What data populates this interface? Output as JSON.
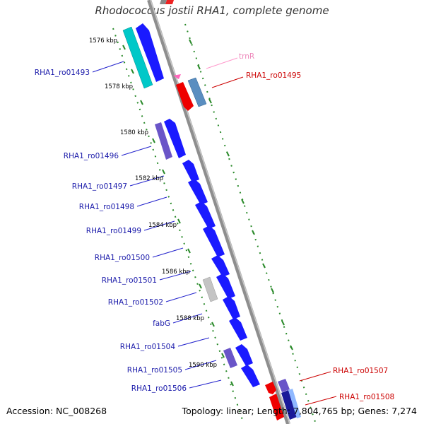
{
  "title": "Rhodococcus jostii RHA1, complete genome",
  "accession_text": "Accession: NC_008268",
  "summary_text": "Topology: linear; Length: 7,804,765 bp; Genes: 7,274",
  "colors": {
    "backbone": "#9b9b9b",
    "tick_green": "#2a8a2a",
    "forward_gene": "#1a1aff",
    "label_forward": "#1a1aaa",
    "label_reverse": "#cc0000",
    "trna_label": "#ee88bb"
  },
  "kbp_markers": [
    "1576 kbp",
    "1578 kbp",
    "1580 kbp",
    "1582 kbp",
    "1584 kbp",
    "1586 kbp",
    "1588 kbp",
    "1590 kbp"
  ],
  "forward_genes": [
    {
      "label": "RHA1_ro01493",
      "color": "#1a1aff"
    },
    {
      "label": "RHA1_ro01496",
      "color": "#1a1aff"
    },
    {
      "label": "RHA1_ro01497",
      "color": "#1a1aff"
    },
    {
      "label": "RHA1_ro01498",
      "color": "#1a1aff"
    },
    {
      "label": "RHA1_ro01499",
      "color": "#1a1aff"
    },
    {
      "label": "RHA1_ro01500",
      "color": "#1a1aff"
    },
    {
      "label": "RHA1_ro01501",
      "color": "#1a1aff"
    },
    {
      "label": "RHA1_ro01502",
      "color": "#1a1aff"
    },
    {
      "label": "fabG",
      "color": "#1a1aff"
    },
    {
      "label": "RHA1_ro01504",
      "color": "#1a1aff"
    },
    {
      "label": "RHA1_ro01505",
      "color": "#1a1aff"
    },
    {
      "label": "RHA1_ro01506",
      "color": "#1a1aff"
    }
  ],
  "reverse_genes": [
    {
      "label": "trnR",
      "color": "#ff66bb"
    },
    {
      "label": "RHA1_ro01495",
      "color": "#ee0000"
    },
    {
      "label": "RHA1_ro01507",
      "color": "#ee0000"
    },
    {
      "label": "RHA1_ro01508",
      "color": "#ee0000"
    }
  ]
}
